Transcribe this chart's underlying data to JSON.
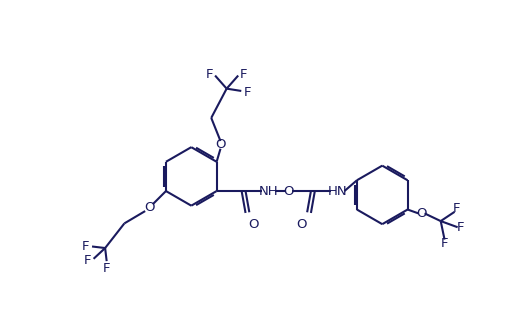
{
  "background_color": "#ffffff",
  "line_color": "#1a1a5e",
  "line_width": 1.5,
  "font_size": 9.5,
  "fig_width": 5.22,
  "fig_height": 3.28,
  "dpi": 100,
  "xlim": [
    0,
    522
  ],
  "ylim": [
    0,
    328
  ]
}
